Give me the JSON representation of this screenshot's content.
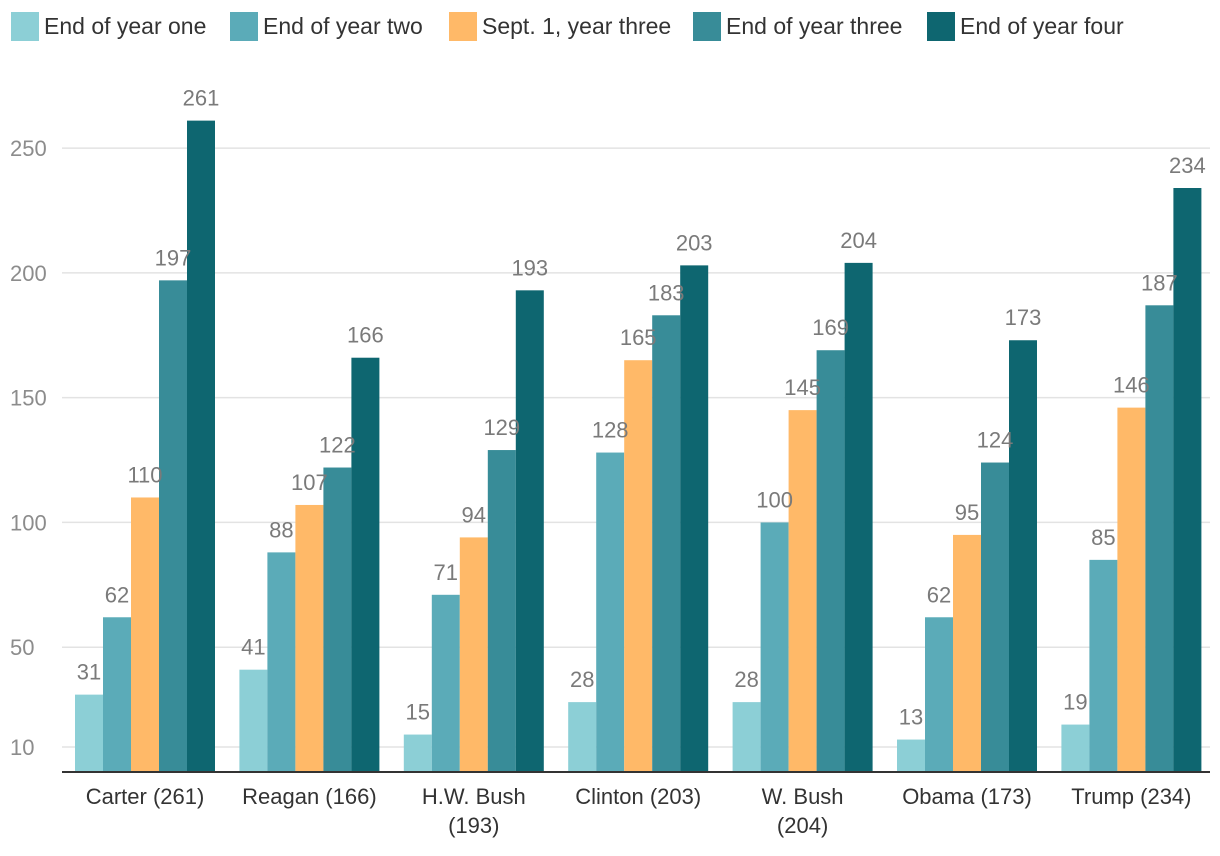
{
  "chart_data": {
    "type": "bar",
    "title": "",
    "xlabel": "",
    "ylabel": "",
    "ylim": [
      0,
      260
    ],
    "yticks": [
      10,
      50,
      100,
      150,
      200,
      250
    ],
    "grid": true,
    "legend_position": "top",
    "categories": [
      [
        "Carter (261)"
      ],
      [
        "Reagan (166)"
      ],
      [
        "H.W. Bush",
        "(193)"
      ],
      [
        "Clinton (203)"
      ],
      [
        "W. Bush",
        "(204)"
      ],
      [
        "Obama (173)"
      ],
      [
        "Trump (234)"
      ]
    ],
    "series": [
      {
        "name": "End of year one",
        "color": "#8ccfd6",
        "values": [
          31,
          41,
          15,
          28,
          28,
          13,
          19
        ]
      },
      {
        "name": "End of year two",
        "color": "#5babb8",
        "values": [
          62,
          88,
          71,
          128,
          100,
          62,
          85
        ]
      },
      {
        "name": "Sept. 1, year three",
        "color": "#ffb968",
        "values": [
          110,
          107,
          94,
          165,
          145,
          95,
          146
        ]
      },
      {
        "name": "End of year three",
        "color": "#388c98",
        "values": [
          197,
          122,
          129,
          183,
          169,
          124,
          187
        ]
      },
      {
        "name": "End of year four",
        "color": "#0e6670",
        "values": [
          261,
          166,
          193,
          203,
          204,
          173,
          234
        ]
      }
    ]
  }
}
